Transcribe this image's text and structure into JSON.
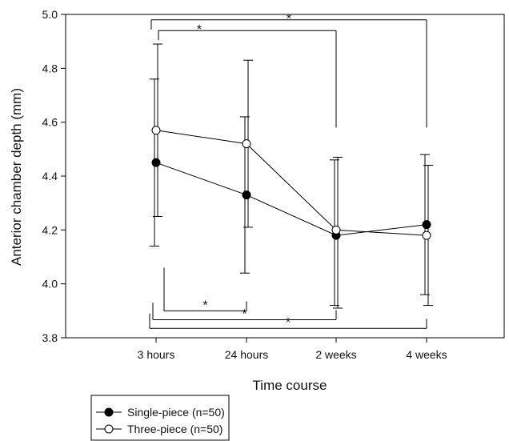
{
  "chart_data": {
    "type": "line",
    "title": "",
    "xlabel": "Time course",
    "ylabel": "Anterior chamber depth (mm)",
    "categories": [
      "3 hours",
      "24 hours",
      "2 weeks",
      "4 weeks"
    ],
    "ylim": [
      3.8,
      5.0
    ],
    "yticks": [
      "3.8",
      "4.0",
      "4.2",
      "4.4",
      "4.6",
      "4.8",
      "5.0"
    ],
    "grid": false,
    "legend_position": "bottom-left, outside plot",
    "series": [
      {
        "name": "Single-piece (n=50)",
        "marker": "filled-circle",
        "color": "#000000",
        "values": [
          4.45,
          4.33,
          4.18,
          4.22
        ],
        "error_low": [
          4.14,
          4.04,
          3.92,
          3.96
        ],
        "error_high": [
          4.76,
          4.62,
          4.46,
          4.48
        ]
      },
      {
        "name": "Three-piece (n=50)",
        "marker": "open-circle",
        "color": "#000000",
        "values": [
          4.57,
          4.52,
          4.2,
          4.18
        ],
        "error_low": [
          4.25,
          4.21,
          3.91,
          3.92
        ],
        "error_high": [
          4.89,
          4.83,
          4.47,
          4.44
        ]
      }
    ],
    "annotations": [
      {
        "label": "*",
        "from": 0,
        "to": 3,
        "position": "top",
        "level": 4.98,
        "drop_to": 4.58
      },
      {
        "label": "*",
        "from": 0,
        "to": 2,
        "position": "top",
        "level": 4.94,
        "drop_to": 4.58
      },
      {
        "label": "*",
        "from": 0,
        "to": 1,
        "position": "bottom",
        "level": 3.9,
        "rise_to": 4.06
      },
      {
        "label": "*",
        "from": 0,
        "to": 2,
        "position": "bottom",
        "level": 3.867,
        "rise_to": 3.93
      },
      {
        "label": "*",
        "from": 0,
        "to": 3,
        "position": "bottom",
        "level": 3.835,
        "rise_to": 3.89
      }
    ]
  }
}
